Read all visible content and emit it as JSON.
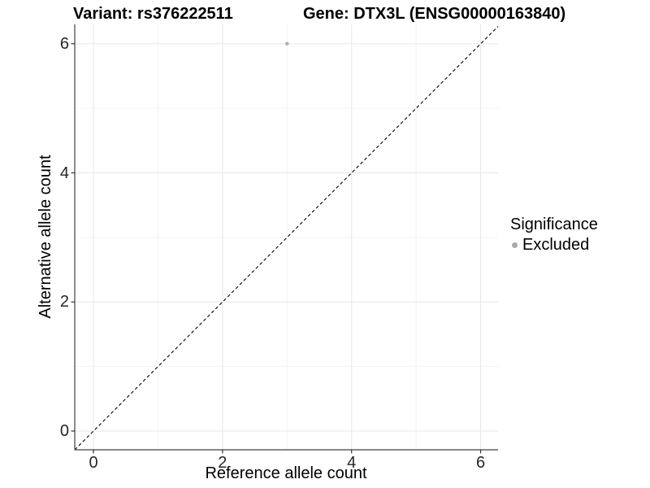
{
  "chart_data": {
    "type": "scatter",
    "title_left": "Variant: rs376222511",
    "title_right": "Gene: DTX3L (ENSG00000163840)",
    "xlabel": "Reference allele count",
    "ylabel": "Alternative allele count",
    "xlim": [
      -0.29,
      6.27
    ],
    "ylim": [
      -0.29,
      6.3
    ],
    "xticks": [
      0,
      2,
      4,
      6
    ],
    "yticks": [
      0,
      2,
      4,
      6
    ],
    "minor_xticks": [
      1,
      3,
      5
    ],
    "minor_yticks": [
      1,
      3,
      5
    ],
    "grid": "major+minor",
    "series": [
      {
        "name": "Excluded",
        "color": "#b2b2b2",
        "point_radius": 2.3,
        "points": [
          {
            "x": 3,
            "y": 6
          }
        ]
      }
    ],
    "reference_line": {
      "type": "identity",
      "style": "dashed",
      "color": "#000000"
    },
    "legend": {
      "title": "Significance",
      "position": "right",
      "items": [
        {
          "label": "Excluded",
          "color": "#aaaaaa"
        }
      ]
    }
  },
  "colors": {
    "background": "#ffffff",
    "grid_major": "#e7e7e7",
    "grid_minor": "#f3f3f3",
    "axis_line": "#404040",
    "tick_mark": "#333333",
    "tick_text": "#262626",
    "title_text": "#000000"
  }
}
